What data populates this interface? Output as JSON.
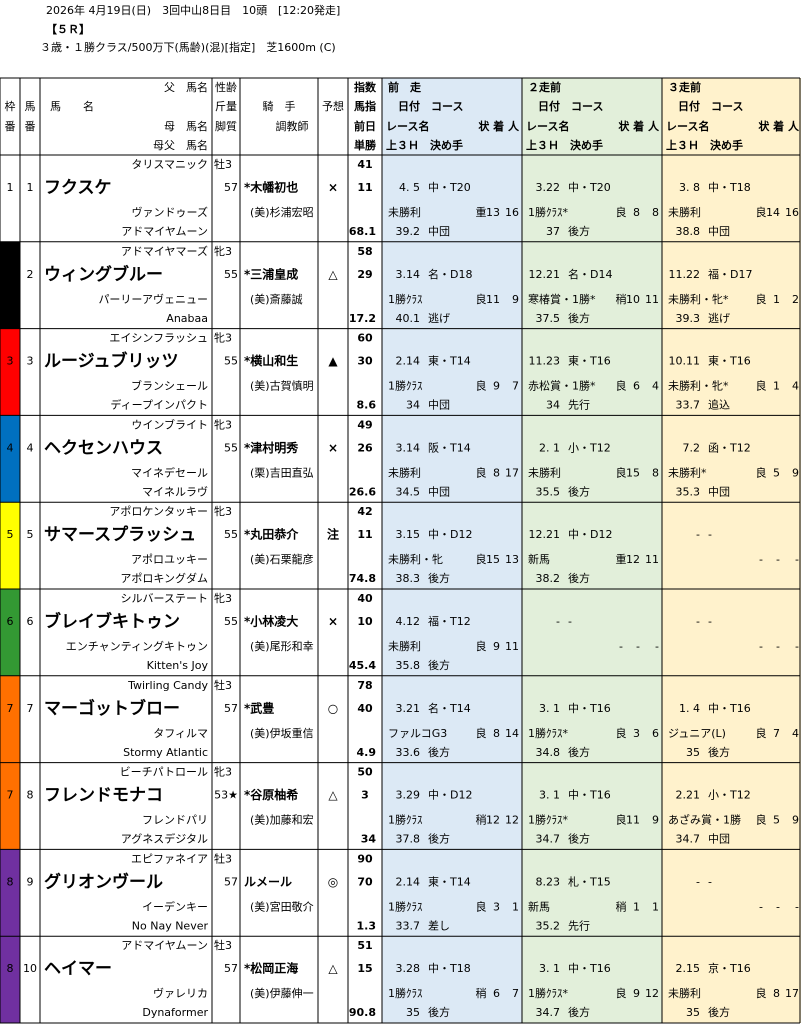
{
  "race_info": {
    "line1": "2026年 4月19日(日)　3回中山8日目　10頭　[12:20発走]",
    "line2": "【５Ｒ】",
    "line3": "３歳・１勝クラス/500万下(馬齢)(混)[指定]　芝1600m (C)"
  },
  "table": {
    "headers": {
      "frame": [
        "枠",
        "番"
      ],
      "num": [
        "馬",
        "番"
      ],
      "horse": [
        "父　馬名",
        "馬　　名",
        "母　馬名",
        "母父　馬名"
      ],
      "sex": [
        "性齢",
        "斤量",
        "脚質"
      ],
      "jockey": [
        "騎　手",
        "調教師"
      ],
      "mark": "予想",
      "index": [
        "指数",
        "馬指",
        "前日",
        "単勝"
      ],
      "races": [
        {
          "title": "前　走",
          "sub": [
            "日付　コース",
            "レース名",
            "状 着 人",
            "上３Ｈ　決め手"
          ],
          "color": "#dce9f5"
        },
        {
          "title": "２走前",
          "sub": [
            "日付　コース",
            "レース名",
            "状 着 人",
            "上３Ｈ　決め手"
          ],
          "color": "#e2efda"
        },
        {
          "title": "３走前",
          "sub": [
            "日付　コース",
            "レース名",
            "状 着 人",
            "上３Ｈ　決め手"
          ],
          "color": "#fff2cc"
        }
      ]
    },
    "frame_colors": {
      "1": "#ffffff",
      "2": "#000000",
      "3": "#ff0000",
      "4": "#0070c0",
      "5": "#ffff00",
      "6": "#339933",
      "7": "#ff7000",
      "8": "#7030a0"
    },
    "horses": [
      {
        "frame": "1",
        "num": "1",
        "sire": "タリスマニック",
        "name": "フクスケ",
        "dam": "ヴァンドゥーズ",
        "damsire": "アドマイヤムーン",
        "sex_age": "牡3",
        "weight": "57",
        "jockey": "*木幡初也",
        "trainer": "(美)杉浦宏昭",
        "mark": "×",
        "index": "41",
        "index2": "11",
        "odds": "68.1",
        "races": [
          {
            "date": "4. 5",
            "course": "中・T20",
            "race": "未勝利",
            "cond": "重",
            "place": "13",
            "heads": "16",
            "last3f": "39.2",
            "tactic": "中団"
          },
          {
            "date": "3.22",
            "course": "中・T20",
            "race": "1勝ｸﾗｽ*",
            "cond": "良",
            "place": "8",
            "heads": "8",
            "last3f": "37",
            "tactic": "後方"
          },
          {
            "date": "3. 8",
            "course": "中・T18",
            "race": "未勝利",
            "cond": "良",
            "place": "14",
            "heads": "16",
            "last3f": "38.8",
            "tactic": "中団"
          }
        ]
      },
      {
        "frame": "2",
        "num": "2",
        "sire": "アドマイヤマーズ",
        "name": "ウィングブルー",
        "dam": "パーリーアヴェニュー",
        "damsire": "Anabaa",
        "sex_age": "牝3",
        "weight": "55",
        "jockey": "*三浦皇成",
        "trainer": "(美)斎藤誠",
        "mark": "△",
        "index": "58",
        "index2": "29",
        "odds": "17.2",
        "races": [
          {
            "date": "3.14",
            "course": "名・D18",
            "race": "1勝ｸﾗｽ",
            "cond": "良",
            "place": "11",
            "heads": "9",
            "last3f": "40.1",
            "tactic": "逃げ"
          },
          {
            "date": "12.21",
            "course": "名・D14",
            "race": "寒椿賞・1勝*",
            "cond": "稍",
            "place": "10",
            "heads": "11",
            "last3f": "37.5",
            "tactic": "後方"
          },
          {
            "date": "11.22",
            "course": "福・D17",
            "race": "未勝利・牝*",
            "cond": "良",
            "place": "1",
            "heads": "2",
            "last3f": "39.3",
            "tactic": "逃げ"
          }
        ]
      },
      {
        "frame": "3",
        "num": "3",
        "sire": "エイシンフラッシュ",
        "name": "ルージュブリッツ",
        "dam": "ブランシェール",
        "damsire": "ディープインパクト",
        "sex_age": "牝3",
        "weight": "55",
        "jockey": "*横山和生",
        "trainer": "(美)古賀慎明",
        "mark": "▲",
        "index": "60",
        "index2": "30",
        "odds": "8.6",
        "races": [
          {
            "date": "2.14",
            "course": "東・T14",
            "race": "1勝ｸﾗｽ",
            "cond": "良",
            "place": "9",
            "heads": "7",
            "last3f": "34",
            "tactic": "中団"
          },
          {
            "date": "11.23",
            "course": "東・T16",
            "race": "赤松賞・1勝*",
            "cond": "良",
            "place": "6",
            "heads": "4",
            "last3f": "34",
            "tactic": "先行"
          },
          {
            "date": "10.11",
            "course": "東・T16",
            "race": "未勝利・牝*",
            "cond": "良",
            "place": "1",
            "heads": "4",
            "last3f": "33.7",
            "tactic": "追込"
          }
        ]
      },
      {
        "frame": "4",
        "num": "4",
        "sire": "ウインブライト",
        "name": "ヘクセンハウス",
        "dam": "マイネデセール",
        "damsire": "マイネルラヴ",
        "sex_age": "牝3",
        "weight": "55",
        "jockey": "*津村明秀",
        "trainer": "(栗)吉田直弘",
        "mark": "×",
        "index": "49",
        "index2": "26",
        "odds": "26.6",
        "races": [
          {
            "date": "3.14",
            "course": "阪・T14",
            "race": "未勝利",
            "cond": "良",
            "place": "8",
            "heads": "17",
            "last3f": "34.5",
            "tactic": "中団"
          },
          {
            "date": "2. 1",
            "course": "小・T12",
            "race": "未勝利",
            "cond": "良",
            "place": "15",
            "heads": "8",
            "last3f": "35.5",
            "tactic": "後方"
          },
          {
            "date": "7.2",
            "course": "函・T12",
            "race": "未勝利*",
            "cond": "良",
            "place": "5",
            "heads": "9",
            "last3f": "35.3",
            "tactic": "中団"
          }
        ]
      },
      {
        "frame": "5",
        "num": "5",
        "sire": "アポロケンタッキー",
        "name": "サマースプラッシュ",
        "dam": "アポロユッキー",
        "damsire": "アポロキングダム",
        "sex_age": "牝3",
        "weight": "55",
        "jockey": "*丸田恭介",
        "trainer": "(美)石栗龍彦",
        "mark": "注",
        "index": "42",
        "index2": "11",
        "odds": "74.8",
        "races": [
          {
            "date": "3.15",
            "course": "中・D12",
            "race": "未勝利・牝",
            "cond": "良",
            "place": "15",
            "heads": "13",
            "last3f": "38.3",
            "tactic": "後方"
          },
          {
            "date": "12.21",
            "course": "中・D12",
            "race": "新馬",
            "cond": "重",
            "place": "12",
            "heads": "11",
            "last3f": "38.2",
            "tactic": "後方"
          },
          {
            "date": "-",
            "course": "-",
            "cond": "-",
            "place": "-",
            "heads": "-"
          }
        ]
      },
      {
        "frame": "6",
        "num": "6",
        "sire": "シルバーステート",
        "name": "ブレイブキトゥン",
        "dam": "エンチャンティングキトゥン",
        "damsire": "Kitten's Joy",
        "sex_age": "牝3",
        "weight": "55",
        "jockey": "*小林凌大",
        "trainer": "(美)尾形和幸",
        "mark": "×",
        "index": "40",
        "index2": "10",
        "odds": "45.4",
        "races": [
          {
            "date": "4.12",
            "course": "福・T12",
            "race": "未勝利",
            "cond": "良",
            "place": "9",
            "heads": "11",
            "last3f": "35.8",
            "tactic": "後方"
          },
          {
            "date": "-",
            "course": "-",
            "cond": "-",
            "place": "-",
            "heads": "-"
          },
          {
            "date": "-",
            "course": "-",
            "cond": "-",
            "place": "-",
            "heads": "-"
          }
        ]
      },
      {
        "frame": "7",
        "num": "7",
        "sire": "Twirling Candy",
        "name": "マーゴットブロー",
        "dam": "タフィルマ",
        "damsire": "Stormy Atlantic",
        "sex_age": "牡3",
        "weight": "57",
        "jockey": "*武豊",
        "trainer": "(美)伊坂重信",
        "mark": "○",
        "index": "78",
        "index2": "40",
        "odds": "4.9",
        "races": [
          {
            "date": "3.21",
            "course": "名・T14",
            "race": "ファルコG3",
            "cond": "良",
            "place": "8",
            "heads": "14",
            "last3f": "33.6",
            "tactic": "後方"
          },
          {
            "date": "3. 1",
            "course": "中・T16",
            "race": "1勝ｸﾗｽ*",
            "cond": "良",
            "place": "3",
            "heads": "6",
            "last3f": "34.8",
            "tactic": "後方"
          },
          {
            "date": "1. 4",
            "course": "中・T16",
            "race": "ジュニア(L)",
            "cond": "良",
            "place": "7",
            "heads": "4",
            "last3f": "35",
            "tactic": "後方"
          }
        ]
      },
      {
        "frame": "7",
        "num": "8",
        "sire": "ビーチパトロール",
        "name": "フレンドモナコ",
        "dam": "フレンドパリ",
        "damsire": "アグネスデジタル",
        "sex_age": "牝3",
        "weight": "53★",
        "jockey": "*谷原柚希",
        "trainer": "(美)加藤和宏",
        "mark": "△",
        "index": "50",
        "index2": "3",
        "odds": "34",
        "races": [
          {
            "date": "3.29",
            "course": "中・D12",
            "race": "1勝ｸﾗｽ",
            "cond": "稍",
            "place": "12",
            "heads": "12",
            "last3f": "37.8",
            "tactic": "後方"
          },
          {
            "date": "3. 1",
            "course": "中・T16",
            "race": "1勝ｸﾗｽ*",
            "cond": "良",
            "place": "11",
            "heads": "9",
            "last3f": "34.7",
            "tactic": "後方"
          },
          {
            "date": "2.21",
            "course": "小・T12",
            "race": "あざみ賞・1勝",
            "cond": "良",
            "place": "5",
            "heads": "9",
            "last3f": "34.7",
            "tactic": "中団"
          }
        ]
      },
      {
        "frame": "8",
        "num": "9",
        "sire": "エピファネイア",
        "name": "グリオンヴール",
        "dam": "イーデンキー",
        "damsire": "No Nay Never",
        "sex_age": "牡3",
        "weight": "57",
        "jockey": "ルメール",
        "trainer": "(美)宮田敬介",
        "mark": "◎",
        "index": "90",
        "index2": "70",
        "odds": "1.3",
        "races": [
          {
            "date": "2.14",
            "course": "東・T14",
            "race": "1勝ｸﾗｽ",
            "cond": "良",
            "place": "3",
            "heads": "1",
            "last3f": "33.7",
            "tactic": "差し"
          },
          {
            "date": "8.23",
            "course": "札・T15",
            "race": "新馬",
            "cond": "稍",
            "place": "1",
            "heads": "1",
            "last3f": "35.2",
            "tactic": "先行"
          },
          {
            "date": "-",
            "course": "-",
            "cond": "-",
            "place": "-",
            "heads": "-"
          }
        ]
      },
      {
        "frame": "8",
        "num": "10",
        "sire": "アドマイヤムーン",
        "name": "ヘイマー",
        "dam": "ヴァレリカ",
        "damsire": "Dynaformer",
        "sex_age": "牡3",
        "weight": "57",
        "jockey": "*松岡正海",
        "trainer": "(美)伊藤伸一",
        "mark": "△",
        "index": "51",
        "index2": "15",
        "odds": "90.8",
        "races": [
          {
            "date": "3.28",
            "course": "中・T18",
            "race": "1勝ｸﾗｽ",
            "cond": "稍",
            "place": "6",
            "heads": "7",
            "last3f": "35",
            "tactic": "後方"
          },
          {
            "date": "3. 1",
            "course": "中・T16",
            "race": "1勝ｸﾗｽ*",
            "cond": "良",
            "place": "9",
            "heads": "12",
            "last3f": "34.7",
            "tactic": "後方"
          },
          {
            "date": "2.15",
            "course": "京・T16",
            "race": "未勝利",
            "cond": "良",
            "place": "8",
            "heads": "17",
            "last3f": "35",
            "tactic": "後方"
          }
        ]
      }
    ]
  }
}
